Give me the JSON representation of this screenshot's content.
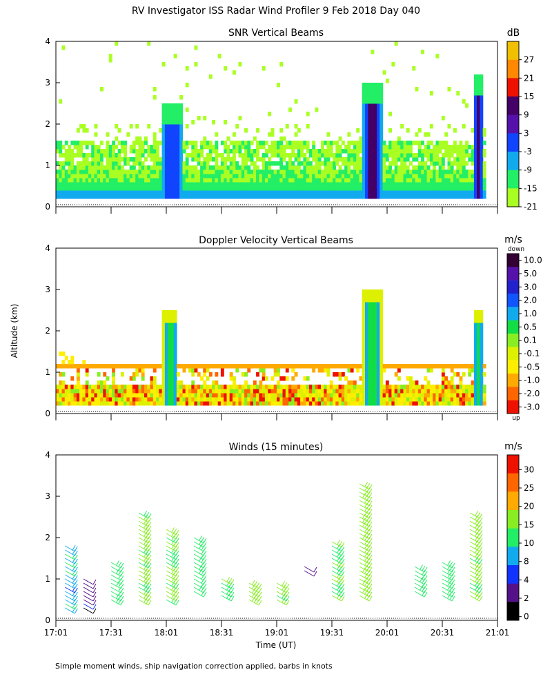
{
  "title": "RV Investigator ISS Radar Wind Profiler   9 Feb 2018 Day 040",
  "ylabel": "Altitude (km)",
  "xlabel": "Time (UT)",
  "footnote": "Simple moment winds, ship navigation correction applied, barbs in knots",
  "x_ticks": [
    "17:01",
    "17:31",
    "18:01",
    "18:31",
    "19:01",
    "19:31",
    "20:01",
    "20:31",
    "21:01"
  ],
  "y_ticks": [
    "0",
    "1",
    "2",
    "3",
    "4"
  ],
  "chart_data": [
    {
      "type": "heatmap",
      "title": "SNR Vertical Beams",
      "unit": "dB",
      "xlim": [
        "17:01",
        "21:01"
      ],
      "ylim": [
        0,
        4
      ],
      "colorbar_labels": [
        "27",
        "21",
        "15",
        "9",
        "3",
        "-3",
        "-9",
        "-15",
        "-21"
      ],
      "colors": [
        "#f0c000",
        "#ff8800",
        "#ee1100",
        "#440066",
        "#5511aa",
        "#1144ff",
        "#11aaee",
        "#22ee66",
        "#aaff22"
      ],
      "features": [
        {
          "name": "layer 0.2-0.8 km",
          "time": [
            "17:01",
            "20:55"
          ],
          "alt": [
            0.2,
            0.8
          ],
          "snr_db": -12
        },
        {
          "name": "layer 0.8-1.6 km",
          "time": [
            "17:01",
            "20:55"
          ],
          "alt": [
            0.8,
            1.6
          ],
          "snr_db": -18
        },
        {
          "name": "convective cell",
          "time": [
            "17:59",
            "18:09"
          ],
          "alt": [
            0.2,
            2.5
          ],
          "snr_db": 3
        },
        {
          "name": "convective cell",
          "time": [
            "19:48",
            "19:58"
          ],
          "alt": [
            0.2,
            3.0
          ],
          "snr_db": 9
        },
        {
          "name": "convective cell",
          "time": [
            "20:48",
            "20:53"
          ],
          "alt": [
            0.2,
            3.2
          ],
          "snr_db": 9
        }
      ]
    },
    {
      "type": "heatmap",
      "title": "Doppler Velocity Vertical Beams",
      "unit": "m/s",
      "xlim": [
        "17:01",
        "21:01"
      ],
      "ylim": [
        0,
        4
      ],
      "colorbar_top": "down",
      "colorbar_bottom": "up",
      "colorbar_labels": [
        "10.0",
        "5.0",
        "3.0",
        "2.0",
        "1.0",
        "0.5",
        "0.1",
        "-0.1",
        "-0.5",
        "-1.0",
        "-2.0",
        "-3.0"
      ],
      "colors": [
        "#330033",
        "#5511aa",
        "#2222cc",
        "#1155ff",
        "#11aaee",
        "#11dd44",
        "#88ee22",
        "#ddf000",
        "#ffee00",
        "#ffaa00",
        "#ff6600",
        "#ee1100"
      ],
      "features": [
        {
          "name": "layer 1.1 km",
          "time": [
            "17:01",
            "20:55"
          ],
          "alt": [
            1.1,
            1.15
          ],
          "velocity_ms": -0.5
        },
        {
          "name": "low layer",
          "time": [
            "17:01",
            "20:55"
          ],
          "alt": [
            0.2,
            0.7
          ],
          "velocity_ms": -0.3
        },
        {
          "name": "convective cell",
          "time": [
            "17:59",
            "18:07"
          ],
          "alt": [
            0.2,
            2.5
          ],
          "velocity_ms": 0.5
        },
        {
          "name": "convective cell",
          "time": [
            "19:48",
            "19:58"
          ],
          "alt": [
            0.2,
            3.0
          ],
          "velocity_ms": 0.5
        },
        {
          "name": "convective cell",
          "time": [
            "20:48",
            "20:53"
          ],
          "alt": [
            0.2,
            2.5
          ],
          "velocity_ms": 0.5
        }
      ]
    },
    {
      "type": "scatter",
      "title": "Winds (15 minutes)",
      "unit": "m/s",
      "xlim": [
        "17:01",
        "21:01"
      ],
      "ylim": [
        0,
        4
      ],
      "colorbar_labels": [
        "30",
        "25",
        "20",
        "15",
        "10",
        "8",
        "4",
        "2",
        "0"
      ],
      "colors": [
        "#ee1100",
        "#ff6600",
        "#ffaa00",
        "#88ee22",
        "#22ee66",
        "#11aaee",
        "#1133ff",
        "#551188",
        "#000000"
      ],
      "profiles": [
        {
          "time": "17:06",
          "alt": [
            0.3,
            1.8
          ],
          "speed_ms": 9
        },
        {
          "time": "17:16",
          "alt": [
            0.3,
            1.0
          ],
          "speed_ms": 3
        },
        {
          "time": "17:31",
          "alt": [
            0.5,
            1.4
          ],
          "speed_ms": 12
        },
        {
          "time": "17:46",
          "alt": [
            0.5,
            2.6
          ],
          "speed_ms": 16
        },
        {
          "time": "18:01",
          "alt": [
            0.5,
            2.2
          ],
          "speed_ms": 15
        },
        {
          "time": "18:16",
          "alt": [
            0.7,
            2.0
          ],
          "speed_ms": 13
        },
        {
          "time": "18:31",
          "alt": [
            0.6,
            1.0
          ],
          "speed_ms": 14
        },
        {
          "time": "18:46",
          "alt": [
            0.5,
            0.9
          ],
          "speed_ms": 18
        },
        {
          "time": "19:01",
          "alt": [
            0.5,
            0.9
          ],
          "speed_ms": 16
        },
        {
          "time": "19:16",
          "alt": [
            1.2,
            1.3
          ],
          "speed_ms": 4
        },
        {
          "time": "19:31",
          "alt": [
            0.6,
            1.9
          ],
          "speed_ms": 15
        },
        {
          "time": "19:46",
          "alt": [
            0.6,
            3.3
          ],
          "speed_ms": 17
        },
        {
          "time": "20:16",
          "alt": [
            0.7,
            1.3
          ],
          "speed_ms": 12
        },
        {
          "time": "20:31",
          "alt": [
            0.6,
            1.4
          ],
          "speed_ms": 14
        },
        {
          "time": "20:46",
          "alt": [
            0.6,
            2.6
          ],
          "speed_ms": 16
        }
      ]
    }
  ]
}
